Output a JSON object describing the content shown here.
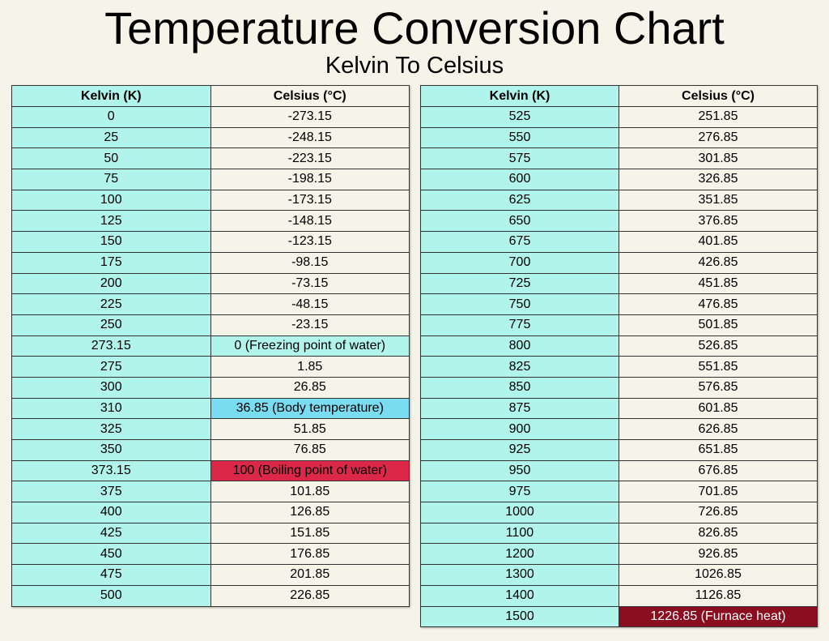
{
  "title": "Temperature Conversion Chart",
  "subtitle": "Kelvin To Celsius",
  "headers": {
    "kelvin": "Kelvin (K)",
    "celsius": "Celsius (°C)"
  },
  "colors": {
    "kelvin_column": "#b1f4ec",
    "background": "#f6f3e9",
    "freezing": "#b1f4ec",
    "body": "#7adcf0",
    "boiling": "#dc2848",
    "furnace": "#8a0d20"
  },
  "left_table": [
    {
      "k": "0",
      "c": "-273.15"
    },
    {
      "k": "25",
      "c": "-248.15"
    },
    {
      "k": "50",
      "c": "-223.15"
    },
    {
      "k": "75",
      "c": "-198.15"
    },
    {
      "k": "100",
      "c": "-173.15"
    },
    {
      "k": "125",
      "c": "-148.15"
    },
    {
      "k": "150",
      "c": "-123.15"
    },
    {
      "k": "175",
      "c": "-98.15"
    },
    {
      "k": "200",
      "c": "-73.15"
    },
    {
      "k": "225",
      "c": "-48.15"
    },
    {
      "k": "250",
      "c": "-23.15"
    },
    {
      "k": "273.15",
      "c": "0 (Freezing point of water)",
      "highlight": "freezing"
    },
    {
      "k": "275",
      "c": "1.85"
    },
    {
      "k": "300",
      "c": "26.85"
    },
    {
      "k": "310",
      "c": "36.85 (Body temperature)",
      "highlight": "body"
    },
    {
      "k": "325",
      "c": "51.85"
    },
    {
      "k": "350",
      "c": "76.85"
    },
    {
      "k": "373.15",
      "c": "100 (Boiling point of water)",
      "highlight": "boiling"
    },
    {
      "k": "375",
      "c": "101.85"
    },
    {
      "k": "400",
      "c": "126.85"
    },
    {
      "k": "425",
      "c": "151.85"
    },
    {
      "k": "450",
      "c": "176.85"
    },
    {
      "k": "475",
      "c": "201.85"
    },
    {
      "k": "500",
      "c": "226.85"
    }
  ],
  "right_table": [
    {
      "k": "525",
      "c": "251.85"
    },
    {
      "k": "550",
      "c": "276.85"
    },
    {
      "k": "575",
      "c": "301.85"
    },
    {
      "k": "600",
      "c": "326.85"
    },
    {
      "k": "625",
      "c": "351.85"
    },
    {
      "k": "650",
      "c": "376.85"
    },
    {
      "k": "675",
      "c": "401.85"
    },
    {
      "k": "700",
      "c": "426.85"
    },
    {
      "k": "725",
      "c": "451.85"
    },
    {
      "k": "750",
      "c": "476.85"
    },
    {
      "k": "775",
      "c": "501.85"
    },
    {
      "k": "800",
      "c": "526.85"
    },
    {
      "k": "825",
      "c": "551.85"
    },
    {
      "k": "850",
      "c": "576.85"
    },
    {
      "k": "875",
      "c": "601.85"
    },
    {
      "k": "900",
      "c": "626.85"
    },
    {
      "k": "925",
      "c": "651.85"
    },
    {
      "k": "950",
      "c": "676.85"
    },
    {
      "k": "975",
      "c": "701.85"
    },
    {
      "k": "1000",
      "c": "726.85"
    },
    {
      "k": "1100",
      "c": "826.85"
    },
    {
      "k": "1200",
      "c": "926.85"
    },
    {
      "k": "1300",
      "c": "1026.85"
    },
    {
      "k": "1400",
      "c": "1126.85"
    },
    {
      "k": "1500",
      "c": "1226.85 (Furnace heat)",
      "highlight": "furnace"
    }
  ]
}
